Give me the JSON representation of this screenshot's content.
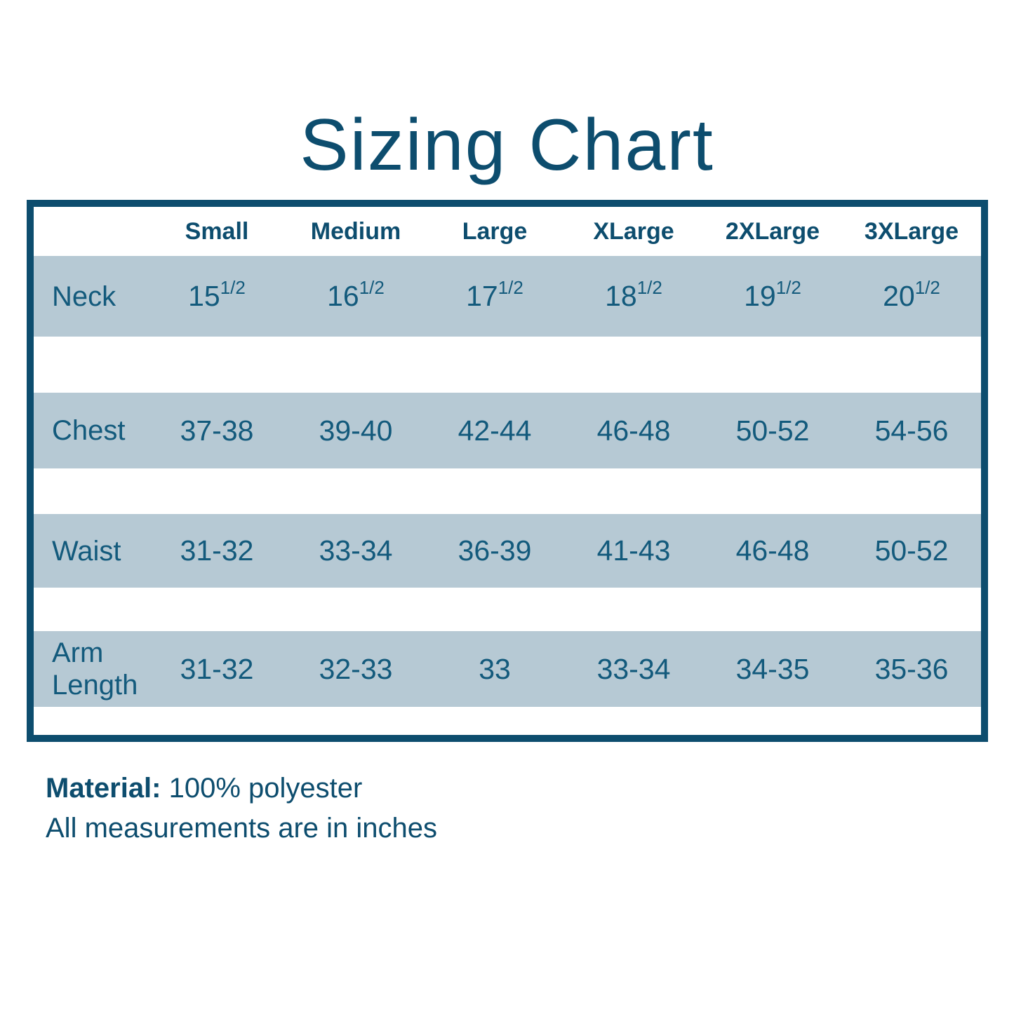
{
  "page": {
    "title": "Sizing Chart"
  },
  "colors": {
    "accent_dark_teal": "#0d4d6e",
    "text_teal": "#135a7c",
    "band_light_blue": "#b6c9d4",
    "background": "#ffffff"
  },
  "table": {
    "columns": [
      "Small",
      "Medium",
      "Large",
      "XLarge",
      "2XLarge",
      "3XLarge"
    ],
    "rows": [
      {
        "label": "Neck",
        "values": [
          {
            "base": "15",
            "frac": "1/2"
          },
          {
            "base": "16",
            "frac": "1/2"
          },
          {
            "base": "17",
            "frac": "1/2"
          },
          {
            "base": "18",
            "frac": "1/2"
          },
          {
            "base": "19",
            "frac": "1/2"
          },
          {
            "base": "20",
            "frac": "1/2"
          }
        ]
      },
      {
        "label": "Chest",
        "values": [
          {
            "base": "37-38",
            "frac": ""
          },
          {
            "base": "39-40",
            "frac": ""
          },
          {
            "base": "42-44",
            "frac": ""
          },
          {
            "base": "46-48",
            "frac": ""
          },
          {
            "base": "50-52",
            "frac": ""
          },
          {
            "base": "54-56",
            "frac": ""
          }
        ]
      },
      {
        "label": "Waist",
        "values": [
          {
            "base": "31-32",
            "frac": ""
          },
          {
            "base": "33-34",
            "frac": ""
          },
          {
            "base": "36-39",
            "frac": ""
          },
          {
            "base": "41-43",
            "frac": ""
          },
          {
            "base": "46-48",
            "frac": ""
          },
          {
            "base": "50-52",
            "frac": ""
          }
        ]
      },
      {
        "label": "Arm Length",
        "values": [
          {
            "base": "31-32",
            "frac": ""
          },
          {
            "base": "32-33",
            "frac": ""
          },
          {
            "base": "33",
            "frac": ""
          },
          {
            "base": "33-34",
            "frac": ""
          },
          {
            "base": "34-35",
            "frac": ""
          },
          {
            "base": "35-36",
            "frac": ""
          }
        ]
      }
    ]
  },
  "footer": {
    "material_label": "Material:",
    "material_value": " 100% polyester",
    "note": "All measurements are in inches"
  }
}
